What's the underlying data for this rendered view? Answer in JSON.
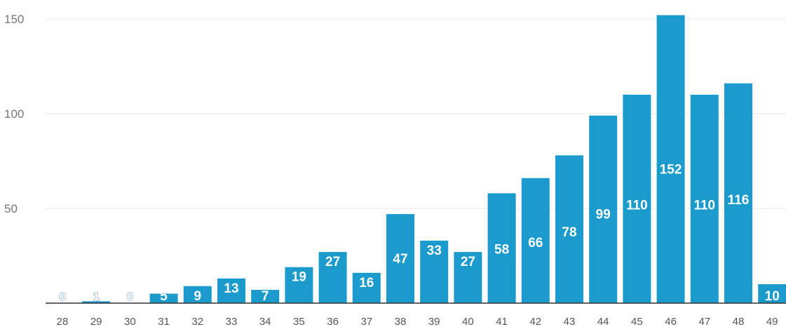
{
  "chart_data": {
    "type": "bar",
    "title": "",
    "xlabel": "",
    "ylabel": "",
    "categories": [
      "28",
      "29",
      "30",
      "31",
      "32",
      "33",
      "34",
      "35",
      "36",
      "37",
      "38",
      "39",
      "40",
      "41",
      "42",
      "43",
      "44",
      "45",
      "46",
      "47",
      "48",
      "49"
    ],
    "values": [
      0,
      1,
      0,
      5,
      9,
      13,
      7,
      19,
      27,
      16,
      47,
      33,
      27,
      58,
      66,
      78,
      99,
      110,
      152,
      110,
      116,
      10
    ],
    "yticks": [
      "50",
      "100",
      "150"
    ],
    "ytick_values": [
      50,
      100,
      150
    ],
    "ylim": [
      0,
      152
    ],
    "grid": true,
    "legend": "none",
    "colors": {
      "bar": "#1a9bcc",
      "label": "#ffffff",
      "grid": "#e6e6e6",
      "baseline": "#333333"
    }
  }
}
